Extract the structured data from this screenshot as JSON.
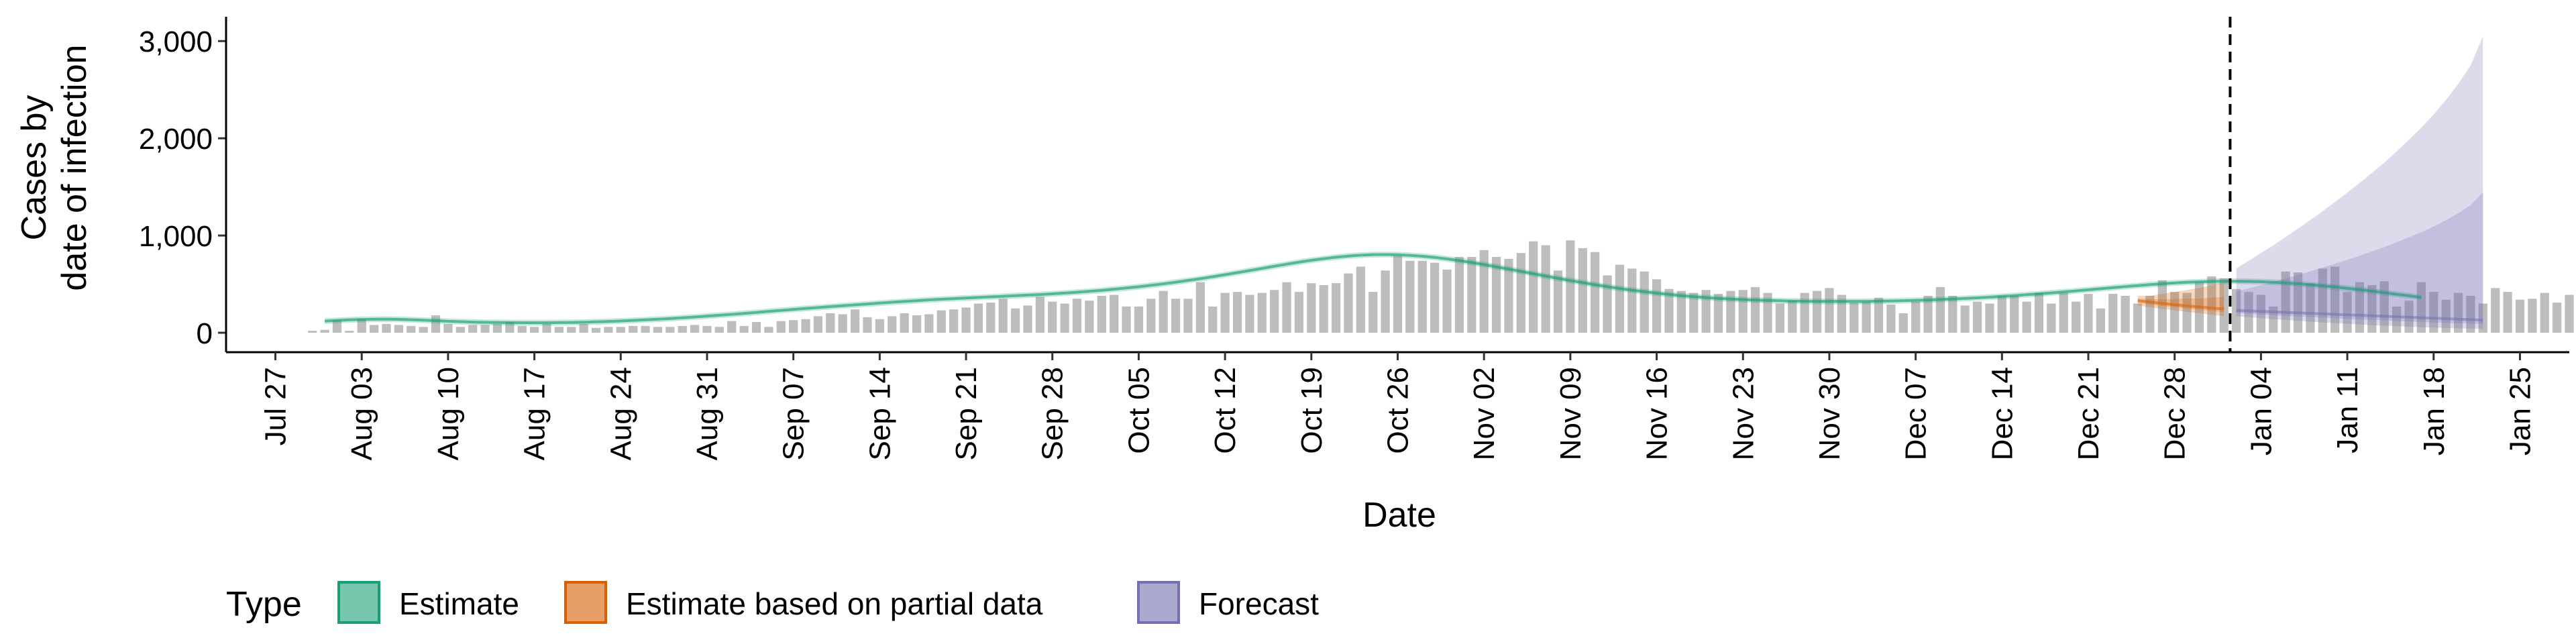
{
  "chart_data": {
    "type": "bar",
    "title": "",
    "xlabel": "Date",
    "ylabel_lines": [
      "Cases by",
      "date of infection"
    ],
    "ylim": [
      -200,
      3250
    ],
    "yticks": [
      0,
      1000,
      2000,
      3000
    ],
    "ytick_labels": [
      "0",
      "1,000",
      "2,000",
      "3,000"
    ],
    "xlim": [
      "2020-07-23",
      "2021-01-29"
    ],
    "xticks": [
      {
        "date": "2020-07-27",
        "label": "Jul 27"
      },
      {
        "date": "2020-08-03",
        "label": "Aug 03"
      },
      {
        "date": "2020-08-10",
        "label": "Aug 10"
      },
      {
        "date": "2020-08-17",
        "label": "Aug 17"
      },
      {
        "date": "2020-08-24",
        "label": "Aug 24"
      },
      {
        "date": "2020-08-31",
        "label": "Aug 31"
      },
      {
        "date": "2020-09-07",
        "label": "Sep 07"
      },
      {
        "date": "2020-09-14",
        "label": "Sep 14"
      },
      {
        "date": "2020-09-21",
        "label": "Sep 21"
      },
      {
        "date": "2020-09-28",
        "label": "Sep 28"
      },
      {
        "date": "2020-10-05",
        "label": "Oct 05"
      },
      {
        "date": "2020-10-12",
        "label": "Oct 12"
      },
      {
        "date": "2020-10-19",
        "label": "Oct 19"
      },
      {
        "date": "2020-10-26",
        "label": "Oct 26"
      },
      {
        "date": "2020-11-02",
        "label": "Nov 02"
      },
      {
        "date": "2020-11-09",
        "label": "Nov 09"
      },
      {
        "date": "2020-11-16",
        "label": "Nov 16"
      },
      {
        "date": "2020-11-23",
        "label": "Nov 23"
      },
      {
        "date": "2020-11-30",
        "label": "Nov 30"
      },
      {
        "date": "2020-12-07",
        "label": "Dec 07"
      },
      {
        "date": "2020-12-14",
        "label": "Dec 14"
      },
      {
        "date": "2020-12-21",
        "label": "Dec 21"
      },
      {
        "date": "2020-12-28",
        "label": "Dec 28"
      },
      {
        "date": "2021-01-04",
        "label": "Jan 04"
      },
      {
        "date": "2021-01-11",
        "label": "Jan 11"
      },
      {
        "date": "2021-01-18",
        "label": "Jan 18"
      },
      {
        "date": "2021-01-25",
        "label": "Jan 25"
      }
    ],
    "forecast_start_date": "2021-01-02",
    "bars": {
      "start_date": "2020-07-30",
      "color": "#bdbdbd",
      "values": [
        20,
        30,
        130,
        20,
        140,
        80,
        90,
        80,
        70,
        60,
        180,
        90,
        60,
        80,
        80,
        90,
        110,
        70,
        60,
        90,
        60,
        60,
        90,
        50,
        60,
        60,
        70,
        70,
        60,
        60,
        70,
        80,
        70,
        60,
        120,
        70,
        110,
        60,
        120,
        130,
        140,
        170,
        200,
        190,
        240,
        160,
        140,
        170,
        200,
        180,
        190,
        230,
        240,
        260,
        300,
        310,
        350,
        250,
        280,
        370,
        320,
        300,
        350,
        330,
        380,
        390,
        270,
        270,
        350,
        430,
        350,
        350,
        520,
        270,
        410,
        420,
        390,
        410,
        440,
        520,
        420,
        510,
        490,
        510,
        610,
        680,
        420,
        640,
        790,
        740,
        740,
        720,
        650,
        780,
        780,
        850,
        780,
        760,
        820,
        940,
        900,
        640,
        950,
        870,
        830,
        590,
        700,
        660,
        630,
        550,
        450,
        430,
        410,
        440,
        400,
        430,
        440,
        470,
        410,
        300,
        330,
        410,
        430,
        460,
        390,
        310,
        320,
        360,
        290,
        200,
        320,
        380,
        470,
        380,
        280,
        320,
        300,
        380,
        380,
        320,
        410,
        300,
        410,
        320,
        400,
        250,
        400,
        380,
        300,
        380,
        540,
        420,
        410,
        520,
        580,
        560,
        450,
        420,
        390,
        270,
        630,
        620,
        510,
        660,
        680,
        420,
        520,
        490,
        530,
        270,
        330,
        520,
        420,
        340,
        410,
        380,
        300,
        460,
        420,
        340,
        350,
        410,
        310,
        390
      ]
    },
    "series": [
      {
        "name": "Estimate",
        "color": "#1b9e77",
        "band_opacity": 0.25,
        "start_date": "2020-07-31",
        "median": [
          120,
          127,
          133,
          137,
          139,
          140,
          138,
          134,
          129,
          124,
          118,
          114,
          110,
          107,
          105,
          104,
          103,
          103,
          103,
          104,
          106,
          108,
          112,
          116,
          121,
          127,
          133,
          139,
          146,
          154,
          162,
          171,
          180,
          189,
          199,
          209,
          220,
          230,
          240,
          250,
          259,
          269,
          278,
          287,
          296,
          305,
          314,
          322,
          330,
          338,
          345,
          351,
          357,
          363,
          369,
          375,
          381,
          387,
          393,
          400,
          408,
          417,
          426,
          436,
          448,
          460,
          473,
          488,
          503,
          520,
          538,
          556,
          576,
          597,
          618,
          640,
          662,
          684,
          705,
          726,
          745,
          762,
          777,
          789,
          798,
          803,
          804,
          802,
          796,
          787,
          775,
          760,
          742,
          722,
          701,
          678,
          655,
          631,
          607,
          583,
          560,
          537,
          515,
          494,
          474,
          455,
          438,
          422,
          407,
          394,
          382,
          371,
          362,
          354,
          347,
          341,
          336,
          332,
          329,
          326,
          324,
          323,
          322,
          322,
          322,
          323,
          325,
          327,
          330,
          333,
          337,
          342,
          347,
          353,
          359,
          366,
          374,
          382,
          391,
          400,
          410,
          420,
          431,
          442,
          453,
          464,
          475,
          485,
          495,
          504,
          512,
          519,
          524,
          528,
          530,
          530,
          528,
          525,
          520,
          513,
          504,
          494,
          483,
          471,
          457,
          443,
          428,
          412,
          396,
          380,
          364
        ],
        "lower": [
          90,
          97,
          103,
          107,
          109,
          110,
          108,
          104,
          99,
          94,
          88,
          84,
          80,
          77,
          75,
          74,
          73,
          73,
          73,
          74,
          76,
          78,
          82,
          86,
          91,
          97,
          103,
          109,
          116,
          124,
          132,
          141,
          150,
          159,
          169,
          179,
          190,
          200,
          210,
          220,
          229,
          239,
          248,
          257,
          266,
          275,
          284,
          292,
          300,
          308,
          315,
          321,
          327,
          333,
          339,
          345,
          351,
          357,
          363,
          370,
          378,
          387,
          396,
          406,
          418,
          430,
          443,
          458,
          473,
          490,
          508,
          526,
          546,
          567,
          588,
          610,
          632,
          654,
          675,
          696,
          715,
          732,
          747,
          759,
          768,
          773,
          774,
          772,
          766,
          757,
          745,
          730,
          712,
          692,
          671,
          648,
          625,
          601,
          577,
          553,
          530,
          507,
          485,
          464,
          444,
          425,
          408,
          392,
          377,
          364,
          352,
          341,
          332,
          324,
          317,
          311,
          306,
          302,
          299,
          296,
          294,
          293,
          292,
          292,
          292,
          293,
          295,
          297,
          300,
          303,
          307,
          312,
          317,
          323,
          329,
          336,
          344,
          352,
          361,
          370,
          380,
          390,
          401,
          412,
          423,
          434,
          445,
          455,
          465,
          474,
          482,
          489,
          494,
          498,
          500,
          500,
          498,
          495,
          490,
          483,
          474,
          464,
          453,
          441,
          427,
          413,
          398,
          382,
          366,
          350,
          334
        ],
        "upper": [
          150,
          157,
          163,
          167,
          169,
          170,
          168,
          164,
          159,
          154,
          148,
          144,
          140,
          137,
          135,
          134,
          133,
          133,
          133,
          134,
          136,
          138,
          142,
          146,
          151,
          157,
          163,
          169,
          176,
          184,
          192,
          201,
          210,
          219,
          229,
          239,
          250,
          260,
          270,
          280,
          289,
          299,
          308,
          317,
          326,
          335,
          344,
          352,
          360,
          368,
          375,
          381,
          387,
          393,
          399,
          405,
          411,
          417,
          423,
          430,
          438,
          447,
          456,
          466,
          478,
          490,
          503,
          518,
          533,
          550,
          568,
          586,
          606,
          627,
          648,
          670,
          692,
          714,
          735,
          756,
          775,
          792,
          807,
          819,
          828,
          833,
          834,
          832,
          826,
          817,
          805,
          790,
          772,
          752,
          731,
          708,
          685,
          661,
          637,
          613,
          590,
          567,
          545,
          524,
          504,
          485,
          468,
          452,
          437,
          424,
          412,
          401,
          392,
          384,
          377,
          371,
          366,
          362,
          359,
          356,
          354,
          353,
          352,
          352,
          352,
          353,
          355,
          357,
          360,
          363,
          367,
          372,
          377,
          383,
          389,
          396,
          404,
          412,
          421,
          430,
          440,
          450,
          461,
          472,
          483,
          494,
          505,
          515,
          525,
          534,
          542,
          549,
          554,
          558,
          560,
          560,
          558,
          555,
          550,
          543,
          534,
          524,
          513,
          501,
          487,
          473,
          458,
          442,
          426,
          410,
          394
        ]
      },
      {
        "name": "Estimate based on partial data",
        "color": "#d95f02",
        "band_opacity": 0.25,
        "start_date": "2020-12-25",
        "median": [
          330,
          316,
          302,
          289,
          277,
          266,
          255,
          245
        ],
        "lower": [
          280,
          262,
          245,
          230,
          215,
          200,
          186,
          170
        ],
        "upper": [
          380,
          380,
          400,
          420,
          440,
          460,
          490,
          520
        ]
      },
      {
        "name": "Forecast",
        "color": "#7570b3",
        "band_opacity": 0.25,
        "start_date": "2021-01-02",
        "median": [
          230,
          225,
          220,
          215,
          210,
          205,
          200,
          195,
          190,
          185,
          180,
          175,
          170,
          165,
          160,
          155,
          150,
          145,
          140,
          135,
          130
        ],
        "lower": [
          170,
          160,
          150,
          140,
          131,
          122,
          114,
          106,
          98,
          91,
          84,
          78,
          72,
          67,
          62,
          57,
          53,
          49,
          45,
          42,
          40
        ],
        "upper": [
          660,
          740,
          820,
          900,
          985,
          1070,
          1160,
          1250,
          1345,
          1440,
          1540,
          1645,
          1750,
          1865,
          1985,
          2110,
          2245,
          2395,
          2560,
          2750,
          3050
        ]
      }
    ],
    "legend": {
      "title": "Type",
      "position": "bottom",
      "entries": [
        {
          "label": "Estimate",
          "color": "#1b9e77"
        },
        {
          "label": "Estimate based on partial data",
          "color": "#d95f02"
        },
        {
          "label": "Forecast",
          "color": "#7570b3"
        }
      ]
    }
  }
}
